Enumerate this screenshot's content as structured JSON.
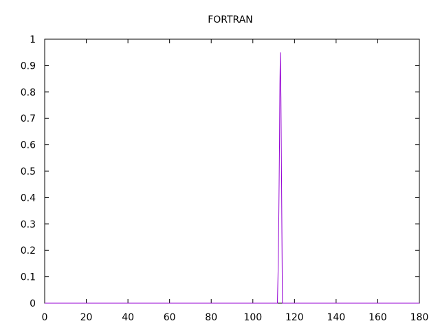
{
  "chart_data": {
    "type": "line",
    "title": "FORTRAN",
    "xlabel": "",
    "ylabel": "",
    "xlim": [
      0,
      180
    ],
    "ylim": [
      0,
      1
    ],
    "x_ticks": [
      0,
      20,
      40,
      60,
      80,
      100,
      120,
      140,
      160,
      180
    ],
    "y_ticks": [
      0,
      0.1,
      0.2,
      0.3,
      0.4,
      0.5,
      0.6,
      0.7,
      0.8,
      0.9,
      1
    ],
    "x_tick_labels": [
      "0",
      "20",
      "40",
      "60",
      "80",
      "100",
      "120",
      "140",
      "160",
      "180"
    ],
    "y_tick_labels": [
      "0",
      "0.1",
      "0.2",
      "0.3",
      "0.4",
      "0.5",
      "0.6",
      "0.7",
      "0.8",
      "0.9",
      "1"
    ],
    "grid": false,
    "legend": "none",
    "series_color": "#9400d3",
    "series": [
      {
        "x": [
          0,
          111.8,
          112.2,
          112.5,
          112.8,
          113.0,
          113.2,
          113.5,
          113.8,
          114.2,
          180
        ],
        "y": [
          0,
          0,
          0.15,
          0.35,
          0.6,
          0.83,
          0.95,
          0.78,
          0.45,
          0,
          0
        ]
      }
    ]
  }
}
